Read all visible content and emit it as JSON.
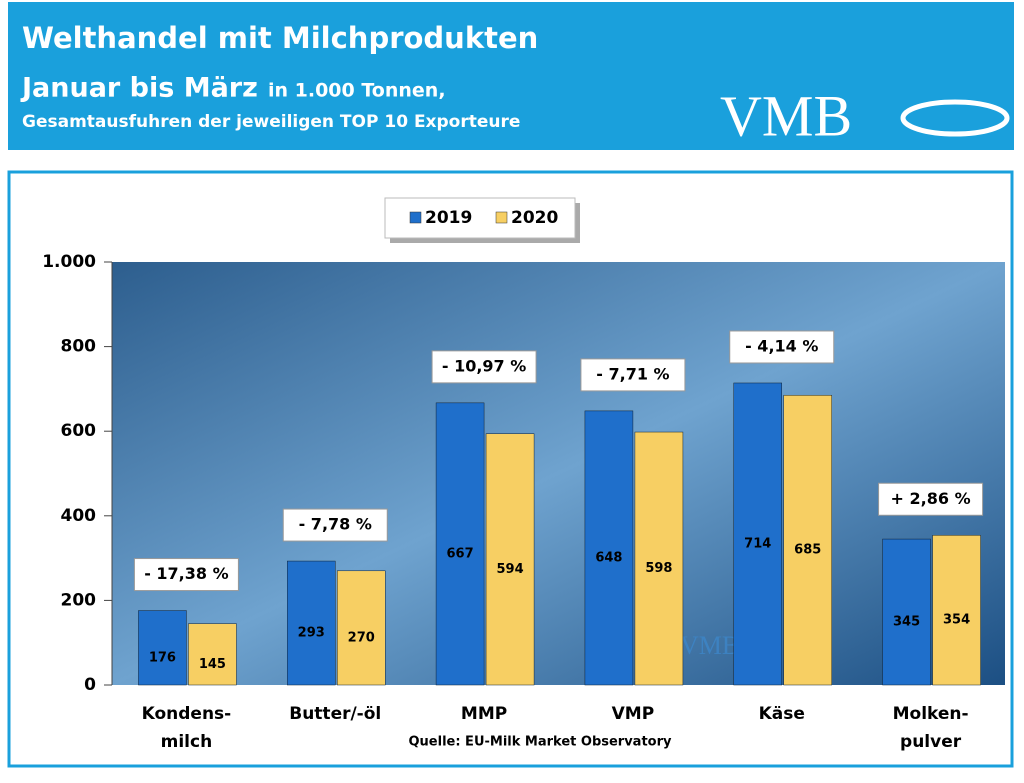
{
  "header": {
    "title": "Welthandel mit Milchprodukten",
    "subtitle_main": "Januar bis März",
    "subtitle_unit": "in 1.000 Tonnen,",
    "subtitle_2": "Gesamtausfuhren der jeweiligen TOP 10 Exporteure",
    "logo": "VMB"
  },
  "chart_data": {
    "type": "bar",
    "categories": [
      [
        "Kondens-",
        "milch"
      ],
      [
        "Butter/-öl"
      ],
      [
        "MMP"
      ],
      [
        "VMP"
      ],
      [
        "Käse"
      ],
      [
        "Molken-",
        "pulver"
      ]
    ],
    "series": [
      {
        "name": "2019",
        "color": "#1f6fcb",
        "values": [
          176,
          293,
          667,
          648,
          714,
          345
        ]
      },
      {
        "name": "2020",
        "color": "#f7cf63",
        "values": [
          145,
          270,
          594,
          598,
          685,
          354
        ]
      }
    ],
    "annotations": [
      "- 17,38 %",
      "- 7,78 %",
      "- 10,97 %",
      "- 7,71 %",
      "- 4,14 %",
      "+ 2,86 %"
    ],
    "ylim": [
      0,
      1000
    ],
    "yticks": [
      0,
      200,
      400,
      600,
      800,
      {
        "value": 1000,
        "label": "1.000"
      }
    ],
    "source": "Quelle: EU-Milk Market Observatory",
    "watermark": "VMB"
  }
}
